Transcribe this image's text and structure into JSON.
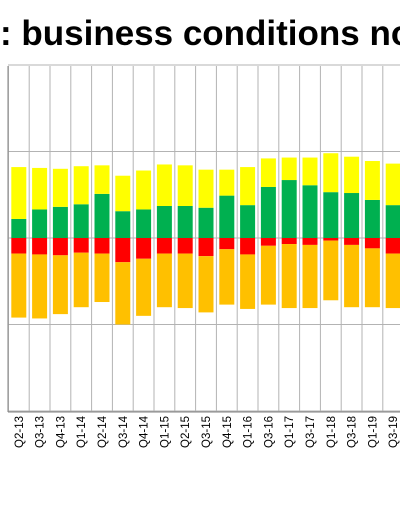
{
  "chart_data": {
    "type": "bar",
    "stacked": true,
    "title": ": business conditions no",
    "categories": [
      "",
      "Q2-13",
      "Q3-13",
      "Q4-13",
      "Q1-14",
      "Q2-14",
      "Q3-14",
      "Q4-14",
      "Q1-15",
      "Q2-15",
      "Q3-15",
      "Q4-15",
      "Q1-16",
      "Q3-16",
      "Q1-17",
      "Q3-17",
      "Q1-18",
      "Q3-18",
      "Q1-19",
      "Q3-19"
    ],
    "series": [
      {
        "color": "#00b050",
        "values": [
          0,
          22,
          33,
          36,
          39,
          51,
          31,
          33,
          37,
          37,
          35,
          49,
          38,
          59,
          67,
          61,
          53,
          52,
          44,
          38
        ]
      },
      {
        "color": "#ffff00",
        "values": [
          0,
          60,
          48,
          44,
          44,
          33,
          41,
          45,
          48,
          47,
          44,
          30,
          44,
          33,
          26,
          32,
          45,
          42,
          45,
          48
        ]
      },
      {
        "color": "#ff0000",
        "values": [
          0,
          -18,
          -19,
          -20,
          -17,
          -18,
          -28,
          -24,
          -18,
          -18,
          -21,
          -13,
          -19,
          -9,
          -7,
          -8,
          -3,
          -8,
          -12,
          -18
        ]
      },
      {
        "color": "#ffc000",
        "values": [
          0,
          -74,
          -74,
          -68,
          -63,
          -56,
          -72,
          -66,
          -62,
          -63,
          -65,
          -64,
          -63,
          -68,
          -74,
          -73,
          -69,
          -72,
          -68,
          -63
        ]
      }
    ],
    "gridlines": true,
    "legend": "none"
  },
  "colors": {
    "grid": "#b3b3b3",
    "axis": "#808080"
  }
}
